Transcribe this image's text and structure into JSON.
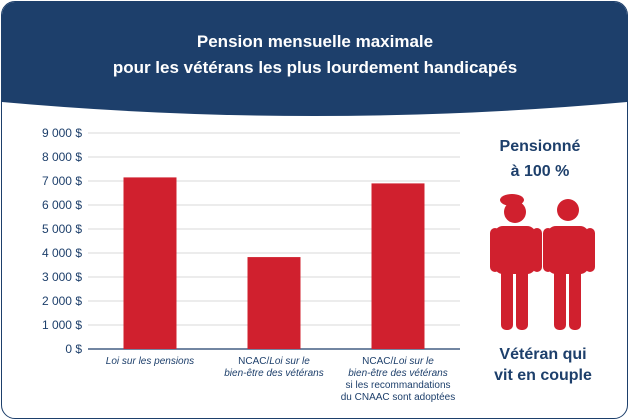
{
  "chart_data": {
    "type": "bar",
    "title_lines": [
      "Pension mensuelle maximale",
      "pour les vétérans les plus lourdement handicapés"
    ],
    "categories": [
      "Loi sur les pensions",
      "NCAC/Loi sur le bien-être des vétérans",
      "NCAC/Loi sur le bien-être des vétérans si les recommandations du CNAAC sont adoptées"
    ],
    "category_label_lines": [
      [
        {
          "t": "Loi sur les pensions",
          "i": true
        }
      ],
      [
        {
          "t": "NCAC/",
          "i": false
        },
        {
          "t": "Loi sur le",
          "i": true
        },
        {
          "br": true
        },
        {
          "t": "bien-être des vétérans",
          "i": true
        }
      ],
      [
        {
          "t": "NCAC/",
          "i": false
        },
        {
          "t": "Loi sur le",
          "i": true
        },
        {
          "br": true
        },
        {
          "t": "bien-être des vétérans",
          "i": true
        },
        {
          "br": true
        },
        {
          "t": "si les recommandations",
          "i": false
        },
        {
          "br": true
        },
        {
          "t": "du CNAAC sont adoptées",
          "i": false
        }
      ]
    ],
    "values": [
      7150,
      3830,
      6900
    ],
    "ylim": [
      0,
      9000
    ],
    "yticks": [
      0,
      1000,
      2000,
      3000,
      4000,
      5000,
      6000,
      7000,
      8000,
      9000
    ],
    "ytick_labels": [
      "0 $",
      "1 000 $",
      "2 000 $",
      "3 000 $",
      "4 000 $",
      "5 000 $",
      "6 000 $",
      "7 000 $",
      "8 000 $",
      "9 000 $"
    ],
    "grid": true,
    "bar_color": "#d0202e"
  },
  "side_panel": {
    "heading_line1": "Pensionné",
    "heading_line2": "à 100 %",
    "caption_line1": "Vétéran qui",
    "caption_line2": "vit en couple",
    "icon": "couple-icon"
  },
  "colors": {
    "header_bg": "#1d3f6b",
    "accent_red": "#d0202e",
    "text_navy": "#1d3f6b"
  }
}
